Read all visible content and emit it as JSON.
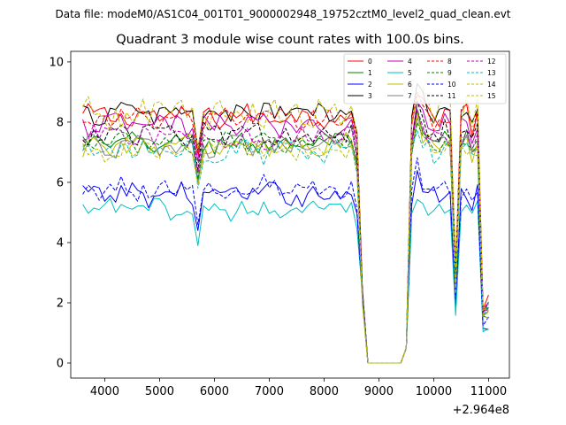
{
  "suptitle": "Data file: modeM0/AS1C04_001T01_9000002948_19752cztM0_level2_quad_clean.evt",
  "chart_data": {
    "type": "line",
    "title": "Quadrant 3 module wise count rates with 100.0s bins.",
    "xlabel": "",
    "ylabel": "",
    "x_offset_label": "+2.964e8",
    "xlim": [
      3380,
      11380
    ],
    "ylim": [
      -0.5,
      10.35
    ],
    "xticks": [
      4000,
      5000,
      6000,
      7000,
      8000,
      9000,
      10000,
      11000
    ],
    "xtick_labels": [
      "4000",
      "5000",
      "6000",
      "7000",
      "8000",
      "9000",
      "10000",
      "11000"
    ],
    "yticks": [
      0,
      2,
      4,
      6,
      8,
      10
    ],
    "ytick_labels": [
      "0",
      "2",
      "4",
      "6",
      "8",
      "10"
    ],
    "legend_position": "top-right",
    "legend_columns": 4,
    "series": [
      {
        "name": "0",
        "color": "#ff0000",
        "dash": "solid",
        "base": 8.2,
        "amp": 0.35
      },
      {
        "name": "1",
        "color": "#008000",
        "dash": "solid",
        "base": 7.3,
        "amp": 0.3
      },
      {
        "name": "2",
        "color": "#0000ff",
        "dash": "solid",
        "base": 5.6,
        "amp": 0.35
      },
      {
        "name": "3",
        "color": "#000000",
        "dash": "solid",
        "base": 8.3,
        "amp": 0.35
      },
      {
        "name": "4",
        "color": "#bf00bf",
        "dash": "solid",
        "base": 7.9,
        "amp": 0.35
      },
      {
        "name": "5",
        "color": "#00bfbf",
        "dash": "solid",
        "base": 5.1,
        "amp": 0.3
      },
      {
        "name": "6",
        "color": "#bfbf00",
        "dash": "solid",
        "base": 7.2,
        "amp": 0.35
      },
      {
        "name": "7",
        "color": "#808080",
        "dash": "solid",
        "base": 7.2,
        "amp": 0.3
      },
      {
        "name": "8",
        "color": "#ff0000",
        "dash": "dashed",
        "base": 8.1,
        "amp": 0.35
      },
      {
        "name": "9",
        "color": "#008000",
        "dash": "dashed",
        "base": 7.3,
        "amp": 0.3
      },
      {
        "name": "10",
        "color": "#0000ff",
        "dash": "dashed",
        "base": 5.8,
        "amp": 0.35
      },
      {
        "name": "11",
        "color": "#000000",
        "dash": "dashed",
        "base": 7.6,
        "amp": 0.35
      },
      {
        "name": "12",
        "color": "#bf00bf",
        "dash": "dashed",
        "base": 7.5,
        "amp": 0.35
      },
      {
        "name": "13",
        "color": "#00bfbf",
        "dash": "dashed",
        "base": 7.0,
        "amp": 0.35
      },
      {
        "name": "14",
        "color": "#bfbf00",
        "dash": "dashed",
        "base": 8.3,
        "amp": 0.5
      },
      {
        "name": "15",
        "color": "#bfbf00",
        "dash": "dashed",
        "base": 7.1,
        "amp": 0.35
      }
    ],
    "time_series": {
      "x_start": 3600,
      "x_step": 100,
      "points": 75,
      "dip_x": [
        5700,
        10400
      ],
      "drop_start": 8600,
      "drop_end": 9500,
      "zero_from": 8800,
      "zero_to": 9400,
      "post_gap_values": [
        8.0,
        9.2,
        8.6,
        8.3,
        8.1,
        8.2,
        8.4,
        8.3,
        3.0,
        8.2,
        8.4,
        7.8,
        8.3,
        2.0
      ]
    }
  }
}
